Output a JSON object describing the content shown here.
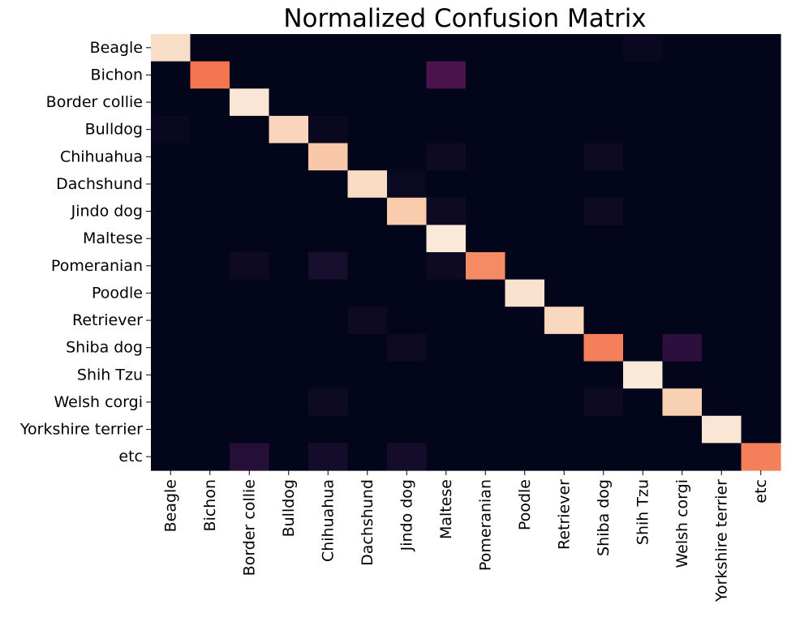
{
  "chart_data": {
    "type": "heatmap",
    "title": "Normalized Confusion Matrix",
    "xlabel": "",
    "ylabel": "",
    "row_labels": [
      "Beagle",
      "Bichon",
      "Border collie",
      "Bulldog",
      "Chihuahua",
      "Dachshund",
      "Jindo dog",
      "Maltese",
      "Pomeranian",
      "Poodle",
      "Retriever",
      "Shiba dog",
      "Shih Tzu",
      "Welsh corgi",
      "Yorkshire terrier",
      "etc"
    ],
    "col_labels": [
      "Beagle",
      "Bichon",
      "Border collie",
      "Bulldog",
      "Chihuahua",
      "Dachshund",
      "Jindo dog",
      "Maltese",
      "Pomeranian",
      "Poodle",
      "Retriever",
      "Shiba dog",
      "Shih Tzu",
      "Welsh corgi",
      "Yorkshire terrier",
      "etc"
    ],
    "values": [
      [
        0.95,
        0,
        0,
        0,
        0,
        0,
        0,
        0,
        0,
        0,
        0,
        0,
        0.03,
        0,
        0,
        0
      ],
      [
        0,
        0.7,
        0,
        0,
        0,
        0,
        0,
        0.25,
        0,
        0,
        0,
        0,
        0,
        0,
        0,
        0
      ],
      [
        0,
        0,
        0.98,
        0,
        0,
        0,
        0,
        0,
        0,
        0,
        0,
        0,
        0,
        0,
        0,
        0
      ],
      [
        0.03,
        0,
        0,
        0.92,
        0.03,
        0,
        0,
        0,
        0,
        0,
        0,
        0,
        0,
        0,
        0,
        0
      ],
      [
        0,
        0,
        0,
        0,
        0.88,
        0,
        0,
        0.05,
        0,
        0,
        0,
        0.05,
        0,
        0,
        0,
        0
      ],
      [
        0,
        0,
        0,
        0,
        0,
        0.94,
        0.04,
        0,
        0,
        0,
        0,
        0,
        0,
        0,
        0,
        0
      ],
      [
        0,
        0,
        0,
        0,
        0,
        0,
        0.89,
        0.05,
        0,
        0,
        0,
        0.05,
        0,
        0,
        0,
        0
      ],
      [
        0,
        0,
        0,
        0,
        0,
        0,
        0,
        0.99,
        0,
        0,
        0,
        0,
        0,
        0,
        0,
        0
      ],
      [
        0,
        0,
        0.05,
        0,
        0.1,
        0,
        0,
        0.05,
        0.74,
        0,
        0,
        0,
        0,
        0,
        0,
        0
      ],
      [
        0,
        0,
        0,
        0,
        0,
        0,
        0,
        0,
        0,
        0.97,
        0,
        0,
        0,
        0,
        0,
        0
      ],
      [
        0,
        0,
        0,
        0,
        0,
        0.05,
        0,
        0,
        0,
        0,
        0.93,
        0,
        0,
        0,
        0,
        0
      ],
      [
        0,
        0,
        0,
        0,
        0,
        0,
        0.05,
        0,
        0,
        0,
        0,
        0.72,
        0,
        0.17,
        0,
        0
      ],
      [
        0,
        0,
        0,
        0,
        0,
        0,
        0,
        0,
        0,
        0,
        0,
        0,
        0.99,
        0,
        0,
        0
      ],
      [
        0,
        0,
        0,
        0,
        0.05,
        0,
        0,
        0,
        0,
        0,
        0,
        0.05,
        0,
        0.9,
        0,
        0
      ],
      [
        0,
        0,
        0,
        0,
        0,
        0,
        0,
        0,
        0,
        0,
        0,
        0,
        0,
        0,
        0.98,
        0
      ],
      [
        0,
        0,
        0.14,
        0,
        0.08,
        0,
        0.08,
        0,
        0,
        0,
        0,
        0,
        0,
        0,
        0,
        0.72
      ]
    ],
    "value_range": [
      0,
      1
    ],
    "colormap": "rocket",
    "grid": false,
    "colorbar": false,
    "colors": {
      "low": "#03051a",
      "high": "#faebdd"
    }
  }
}
